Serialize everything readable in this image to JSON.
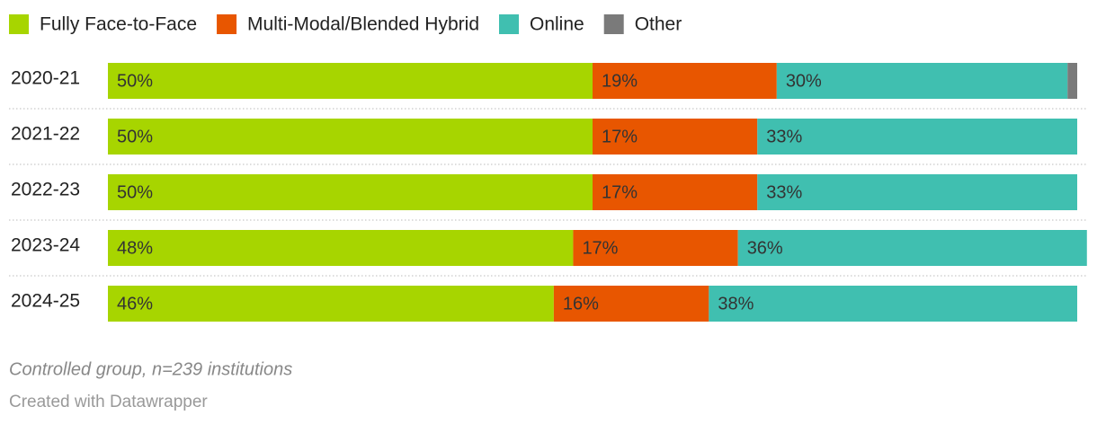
{
  "chart_data": {
    "type": "stacked-bar-horizontal",
    "categories": [
      "2020-21",
      "2021-22",
      "2022-23",
      "2023-24",
      "2024-25"
    ],
    "series": [
      {
        "name": "Fully Face-to-Face",
        "color": "#a7d500",
        "values": [
          50,
          50,
          50,
          48,
          46
        ],
        "value_labels": [
          "50%",
          "50%",
          "50%",
          "48%",
          "46%"
        ]
      },
      {
        "name": "Multi-Modal/Blended Hybrid",
        "color": "#e85600",
        "values": [
          19,
          17,
          17,
          17,
          16
        ],
        "value_labels": [
          "19%",
          "17%",
          "17%",
          "17%",
          "16%"
        ]
      },
      {
        "name": "Online",
        "color": "#40bfb0",
        "values": [
          30,
          33,
          33,
          36,
          38
        ],
        "value_labels": [
          "30%",
          "33%",
          "33%",
          "36%",
          "38%"
        ]
      },
      {
        "name": "Other",
        "color": "#7a7a7a",
        "values": [
          1,
          null,
          null,
          null,
          null
        ]
      }
    ],
    "xlim": [
      0,
      100
    ],
    "legend": "top-left",
    "note": "Controlled group, n=239 institutions",
    "credit": "Created with Datawrapper"
  }
}
